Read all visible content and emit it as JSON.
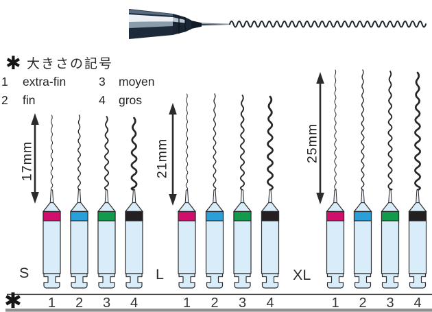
{
  "legend": {
    "marker": "✱",
    "title": "大きさの記号",
    "items": [
      {
        "num": "1",
        "label": "extra-fin"
      },
      {
        "num": "2",
        "label": "fin"
      },
      {
        "num": "3",
        "label": "moyen"
      },
      {
        "num": "4",
        "label": "gros"
      }
    ]
  },
  "groups": [
    {
      "name": "S",
      "length_label": "17mm",
      "sizes": [
        "1",
        "2",
        "3",
        "4"
      ]
    },
    {
      "name": "L",
      "length_label": "21mm",
      "sizes": [
        "1",
        "2",
        "3",
        "4"
      ]
    },
    {
      "name": "XL",
      "length_label": "25mm",
      "sizes": [
        "1",
        "2",
        "3",
        "4"
      ]
    }
  ],
  "footnote_marker": "✱",
  "colors": {
    "size_bands": [
      "#cf0f6b",
      "#2b9fd8",
      "#149a4c",
      "#241f20"
    ],
    "handle_body": "#d8ecfa",
    "handle_shaft": "#eaf3fb",
    "outline": "#2b2b2b",
    "spiral": "#262626",
    "rule_thin": "#4a4a4a",
    "rule_thick": "#909090"
  }
}
